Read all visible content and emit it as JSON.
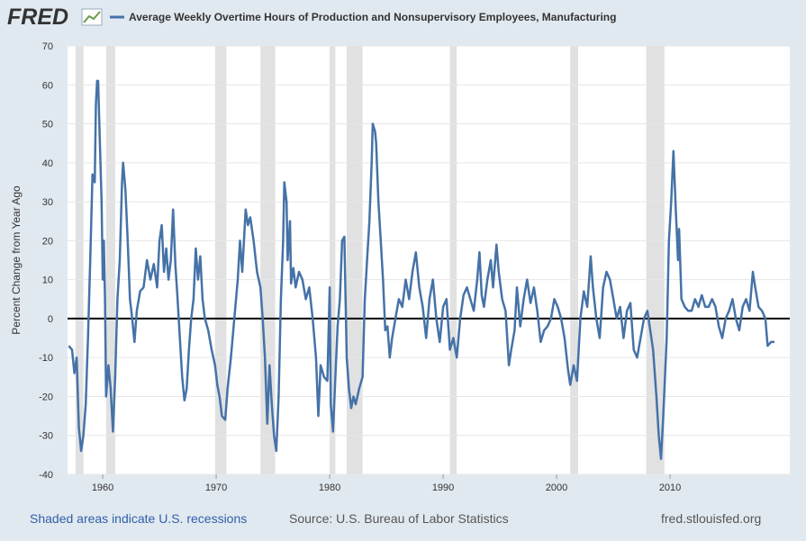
{
  "chart_data": {
    "type": "line",
    "logo": "FRED",
    "y_label": "Percent Change from Year Ago",
    "footer_left": "Shaded areas indicate U.S. recessions",
    "footer_source": "Source: U.S. Bureau of Labor Statistics",
    "footer_right": "fred.stlouisfed.org",
    "xlim": [
      1956.9,
      2020.55
    ],
    "xticks": [
      1960,
      1970,
      1980,
      1990,
      2000,
      2010
    ],
    "ylim": [
      -40,
      70
    ],
    "yticks": [
      -40,
      -30,
      -20,
      -10,
      0,
      10,
      20,
      30,
      40,
      50,
      60,
      70
    ],
    "grid": true,
    "recessions": [
      [
        1957.6,
        1958.3
      ],
      [
        1960.3,
        1961.1
      ],
      [
        1969.9,
        1970.9
      ],
      [
        1973.9,
        1975.2
      ],
      [
        1980.0,
        1980.5
      ],
      [
        1981.5,
        1982.9
      ],
      [
        1990.6,
        1991.2
      ],
      [
        2001.2,
        2001.9
      ],
      [
        2007.9,
        2009.5
      ]
    ],
    "x": [
      1957.0,
      1957.3,
      1957.5,
      1957.7,
      1957.9,
      1958.1,
      1958.3,
      1958.5,
      1958.7,
      1958.9,
      1959.1,
      1959.3,
      1959.4,
      1959.5,
      1959.6,
      1959.7,
      1959.9,
      1960.0,
      1960.1,
      1960.2,
      1960.3,
      1960.5,
      1960.7,
      1960.9,
      1961.1,
      1961.3,
      1961.5,
      1961.7,
      1961.8,
      1962.0,
      1962.2,
      1962.4,
      1962.6,
      1962.8,
      1963.0,
      1963.3,
      1963.6,
      1963.9,
      1964.2,
      1964.5,
      1964.8,
      1965.0,
      1965.2,
      1965.4,
      1965.6,
      1965.8,
      1966.0,
      1966.2,
      1966.4,
      1966.6,
      1966.8,
      1967.0,
      1967.2,
      1967.4,
      1967.6,
      1967.8,
      1968.0,
      1968.2,
      1968.4,
      1968.6,
      1968.8,
      1969.0,
      1969.3,
      1969.6,
      1969.9,
      1970.1,
      1970.3,
      1970.5,
      1970.8,
      1971.0,
      1971.3,
      1971.6,
      1971.9,
      1972.1,
      1972.3,
      1972.6,
      1972.8,
      1973.0,
      1973.3,
      1973.6,
      1973.9,
      1974.1,
      1974.3,
      1974.5,
      1974.7,
      1974.9,
      1975.1,
      1975.3,
      1975.5,
      1975.7,
      1975.9,
      1976.0,
      1976.2,
      1976.3,
      1976.5,
      1976.6,
      1976.8,
      1977.0,
      1977.3,
      1977.6,
      1977.9,
      1978.2,
      1978.5,
      1978.8,
      1979.0,
      1979.2,
      1979.5,
      1979.8,
      1980.0,
      1980.1,
      1980.3,
      1980.5,
      1980.7,
      1980.9,
      1981.1,
      1981.3,
      1981.5,
      1981.7,
      1981.9,
      1982.1,
      1982.3,
      1982.6,
      1982.9,
      1983.1,
      1983.3,
      1983.5,
      1983.7,
      1983.8,
      1984.0,
      1984.1,
      1984.3,
      1984.5,
      1984.7,
      1984.9,
      1985.1,
      1985.3,
      1985.5,
      1985.8,
      1986.1,
      1986.4,
      1986.7,
      1987.0,
      1987.3,
      1987.6,
      1987.9,
      1988.2,
      1988.5,
      1988.8,
      1989.1,
      1989.4,
      1989.7,
      1990.0,
      1990.3,
      1990.6,
      1990.9,
      1991.2,
      1991.5,
      1991.8,
      1992.1,
      1992.4,
      1992.7,
      1993.0,
      1993.2,
      1993.4,
      1993.6,
      1993.9,
      1994.2,
      1994.4,
      1994.7,
      1994.9,
      1995.2,
      1995.5,
      1995.8,
      1996.0,
      1996.3,
      1996.5,
      1996.8,
      1997.1,
      1997.4,
      1997.7,
      1998.0,
      1998.3,
      1998.6,
      1998.9,
      1999.2,
      1999.5,
      1999.8,
      2000.1,
      2000.4,
      2000.7,
      2001.0,
      2001.2,
      2001.5,
      2001.8,
      2002.1,
      2002.4,
      2002.7,
      2003.0,
      2003.2,
      2003.5,
      2003.8,
      2004.1,
      2004.4,
      2004.7,
      2005.0,
      2005.3,
      2005.6,
      2005.9,
      2006.2,
      2006.5,
      2006.8,
      2007.1,
      2007.4,
      2007.7,
      2008.0,
      2008.2,
      2008.5,
      2008.8,
      2009.0,
      2009.2,
      2009.4,
      2009.7,
      2009.9,
      2010.1,
      2010.3,
      2010.5,
      2010.7,
      2010.8,
      2011.0,
      2011.3,
      2011.6,
      2011.9,
      2012.2,
      2012.5,
      2012.8,
      2013.1,
      2013.4,
      2013.7,
      2014.0,
      2014.3,
      2014.6,
      2014.9,
      2015.2,
      2015.5,
      2015.8,
      2016.1,
      2016.4,
      2016.7,
      2017.0,
      2017.3,
      2017.5,
      2017.8,
      2018.1,
      2018.4,
      2018.6,
      2018.9,
      2019.2
    ],
    "series": [
      {
        "name": "Average Weekly Overtime Hours of Production and Nonsupervisory Employees, Manufacturing",
        "color": "#4572a7",
        "values": [
          -7,
          -8,
          -14,
          -10,
          -28,
          -34,
          -30,
          -22,
          -5,
          15,
          37,
          35,
          55,
          61,
          61,
          50,
          30,
          10,
          20,
          5,
          -20,
          -12,
          -18,
          -29,
          -15,
          5,
          15,
          35,
          40,
          33,
          20,
          5,
          0,
          -6,
          2,
          7,
          8,
          15,
          10,
          14,
          8,
          20,
          24,
          12,
          18,
          10,
          15,
          28,
          14,
          5,
          -5,
          -15,
          -21,
          -18,
          -8,
          0,
          5,
          18,
          10,
          16,
          5,
          0,
          -3,
          -8,
          -12,
          -17,
          -20,
          -25,
          -26,
          -18,
          -10,
          0,
          10,
          20,
          12,
          28,
          24,
          26,
          20,
          12,
          8,
          0,
          -10,
          -27,
          -12,
          -22,
          -30,
          -34,
          -20,
          5,
          20,
          35,
          30,
          15,
          25,
          9,
          13,
          8,
          12,
          10,
          5,
          8,
          0,
          -10,
          -25,
          -12,
          -15,
          -16,
          8,
          -22,
          -29,
          -15,
          -2,
          5,
          20,
          21,
          -10,
          -18,
          -23,
          -20,
          -22,
          -18,
          -15,
          5,
          15,
          25,
          40,
          50,
          48,
          45,
          30,
          20,
          10,
          -3,
          -2,
          -10,
          -5,
          0,
          5,
          3,
          10,
          5,
          12,
          17,
          8,
          3,
          -5,
          5,
          10,
          0,
          -6,
          3,
          5,
          -8,
          -5,
          -10,
          0,
          6,
          8,
          5,
          2,
          10,
          17,
          6,
          3,
          10,
          15,
          8,
          19,
          12,
          5,
          2,
          -12,
          -8,
          -3,
          8,
          -2,
          5,
          10,
          4,
          8,
          2,
          -6,
          -3,
          -2,
          0,
          5,
          3,
          0,
          -5,
          -13,
          -17,
          -12,
          -16,
          0,
          7,
          3,
          16,
          8,
          0,
          -5,
          8,
          12,
          10,
          5,
          0,
          3,
          -5,
          2,
          4,
          -8,
          -10,
          -5,
          0,
          2,
          -2,
          -8,
          -20,
          -30,
          -36,
          -25,
          -5,
          20,
          30,
          43,
          28,
          15,
          23,
          5,
          3,
          2,
          2,
          5,
          3,
          6,
          3,
          3,
          5,
          3,
          -2,
          -5,
          0,
          2,
          5,
          0,
          -3,
          3,
          5,
          2,
          12,
          8,
          3,
          2,
          0,
          -7,
          -6,
          -6
        ]
      }
    ]
  }
}
